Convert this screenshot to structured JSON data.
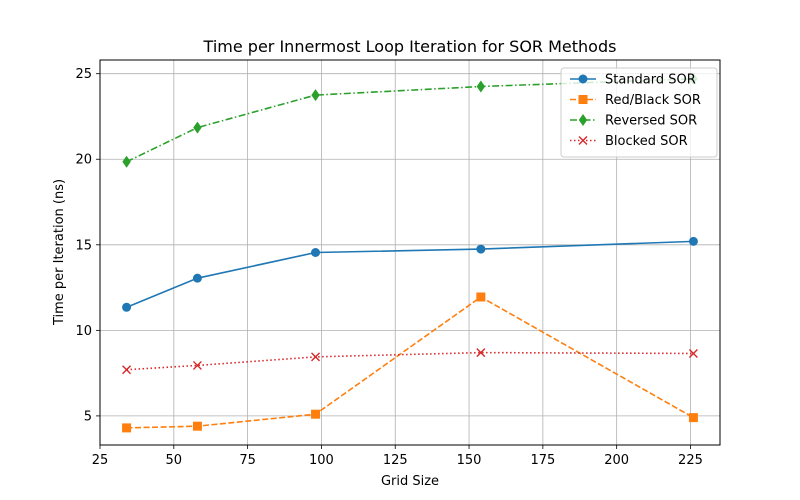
{
  "chart_data": {
    "type": "line",
    "title": "Time per Innermost Loop Iteration for SOR Methods",
    "xlabel": "Grid Size",
    "ylabel": "Time per Iteration (ns)",
    "xlim": [
      25,
      235
    ],
    "ylim": [
      3.3,
      25.8
    ],
    "xticks": [
      25,
      50,
      75,
      100,
      125,
      150,
      175,
      200,
      225
    ],
    "yticks": [
      5,
      10,
      15,
      20,
      25
    ],
    "grid": true,
    "legend_position": "upper-right",
    "x": [
      34,
      58,
      98,
      154,
      226
    ],
    "series": [
      {
        "name": "Standard SOR",
        "color": "#1f77b4",
        "marker": "circle",
        "linestyle": "solid",
        "values": [
          11.35,
          13.05,
          14.55,
          14.75,
          15.2
        ]
      },
      {
        "name": "Red/Black SOR",
        "color": "#ff7f0e",
        "marker": "square",
        "linestyle": "dashed",
        "values": [
          4.3,
          4.4,
          5.1,
          11.95,
          4.9
        ]
      },
      {
        "name": "Reversed SOR",
        "color": "#2ca02c",
        "marker": "diamond",
        "linestyle": "dashdot",
        "values": [
          19.85,
          21.85,
          23.75,
          24.25,
          24.7
        ]
      },
      {
        "name": "Blocked SOR",
        "color": "#d62728",
        "marker": "x",
        "linestyle": "dotted",
        "values": [
          7.7,
          7.95,
          8.45,
          8.7,
          8.65
        ]
      }
    ]
  }
}
